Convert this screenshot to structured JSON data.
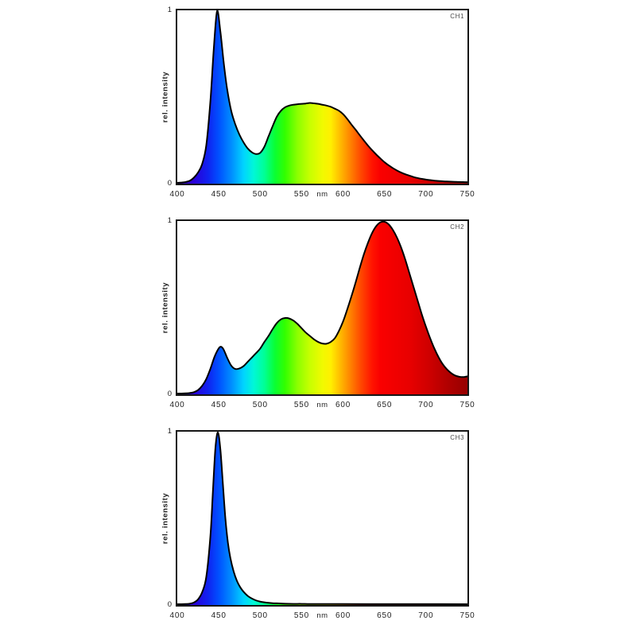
{
  "chart_data": [
    {
      "type": "area",
      "title": "CH1",
      "ylabel": "rel. intensity",
      "xlabel": "nm",
      "xlim": [
        400,
        750
      ],
      "ylim": [
        0,
        1
      ],
      "grid": false,
      "legend": "none",
      "xticks": [
        "400",
        "450",
        "500",
        "550",
        "600",
        "650",
        "700",
        "750"
      ],
      "yticks": [
        "0",
        "1"
      ],
      "x": [
        400,
        405,
        410,
        415,
        420,
        425,
        430,
        435,
        440,
        444,
        448,
        452,
        456,
        460,
        465,
        470,
        475,
        480,
        485,
        490,
        495,
        500,
        505,
        510,
        515,
        520,
        525,
        530,
        535,
        540,
        545,
        550,
        555,
        560,
        565,
        570,
        575,
        580,
        585,
        590,
        595,
        600,
        605,
        610,
        615,
        620,
        625,
        630,
        635,
        640,
        645,
        650,
        655,
        660,
        665,
        670,
        675,
        680,
        685,
        690,
        695,
        700,
        705,
        710,
        715,
        720,
        725,
        730,
        735,
        740,
        745,
        750
      ],
      "y": [
        0,
        0.002,
        0.005,
        0.012,
        0.03,
        0.06,
        0.11,
        0.22,
        0.48,
        0.78,
        1.0,
        0.88,
        0.7,
        0.55,
        0.42,
        0.34,
        0.28,
        0.235,
        0.2,
        0.178,
        0.168,
        0.175,
        0.21,
        0.27,
        0.33,
        0.385,
        0.42,
        0.44,
        0.45,
        0.455,
        0.458,
        0.46,
        0.462,
        0.465,
        0.463,
        0.46,
        0.455,
        0.45,
        0.443,
        0.432,
        0.42,
        0.4,
        0.372,
        0.34,
        0.31,
        0.278,
        0.247,
        0.217,
        0.19,
        0.165,
        0.142,
        0.12,
        0.102,
        0.086,
        0.072,
        0.06,
        0.05,
        0.042,
        0.034,
        0.028,
        0.023,
        0.019,
        0.016,
        0.013,
        0.011,
        0.009,
        0.008,
        0.007,
        0.006,
        0.005,
        0.0045,
        0.004
      ]
    },
    {
      "type": "area",
      "title": "CH2",
      "ylabel": "rel. intensity",
      "xlabel": "nm",
      "xlim": [
        400,
        750
      ],
      "ylim": [
        0,
        1
      ],
      "grid": false,
      "legend": "none",
      "xticks": [
        "400",
        "450",
        "500",
        "550",
        "600",
        "650",
        "700",
        "750"
      ],
      "yticks": [
        "0",
        "1"
      ],
      "x": [
        400,
        405,
        410,
        415,
        420,
        425,
        430,
        435,
        440,
        445,
        450,
        453,
        456,
        460,
        465,
        470,
        475,
        480,
        485,
        490,
        495,
        500,
        505,
        510,
        515,
        520,
        525,
        530,
        535,
        540,
        545,
        550,
        555,
        560,
        565,
        570,
        575,
        580,
        585,
        590,
        595,
        600,
        605,
        610,
        615,
        620,
        625,
        630,
        635,
        640,
        645,
        650,
        655,
        660,
        665,
        670,
        675,
        680,
        685,
        690,
        695,
        700,
        705,
        710,
        715,
        720,
        725,
        730,
        735,
        740,
        745,
        750
      ],
      "y": [
        0,
        0,
        0.001,
        0.003,
        0.008,
        0.02,
        0.045,
        0.085,
        0.145,
        0.215,
        0.263,
        0.272,
        0.255,
        0.21,
        0.163,
        0.143,
        0.146,
        0.16,
        0.185,
        0.21,
        0.235,
        0.262,
        0.3,
        0.335,
        0.375,
        0.41,
        0.432,
        0.44,
        0.437,
        0.425,
        0.405,
        0.38,
        0.355,
        0.335,
        0.315,
        0.3,
        0.291,
        0.29,
        0.3,
        0.322,
        0.365,
        0.42,
        0.49,
        0.565,
        0.645,
        0.73,
        0.81,
        0.878,
        0.935,
        0.975,
        0.997,
        1.0,
        0.985,
        0.953,
        0.908,
        0.85,
        0.78,
        0.7,
        0.62,
        0.54,
        0.46,
        0.388,
        0.322,
        0.263,
        0.213,
        0.172,
        0.142,
        0.12,
        0.105,
        0.098,
        0.096,
        0.1
      ]
    },
    {
      "type": "area",
      "title": "CH3",
      "ylabel": "rel. intensity",
      "xlabel": "nm",
      "xlim": [
        400,
        750
      ],
      "ylim": [
        0,
        1
      ],
      "grid": false,
      "legend": "none",
      "xticks": [
        "400",
        "450",
        "500",
        "550",
        "600",
        "650",
        "700",
        "750"
      ],
      "yticks": [
        "0",
        "1"
      ],
      "x": [
        400,
        405,
        410,
        415,
        420,
        425,
        430,
        435,
        440,
        443,
        446,
        449,
        452,
        455,
        458,
        461,
        464,
        468,
        472,
        476,
        480,
        485,
        490,
        495,
        500,
        505,
        510,
        515,
        520,
        530,
        540,
        550,
        560,
        580,
        600,
        650,
        700,
        750
      ],
      "y": [
        0,
        0,
        0.001,
        0.003,
        0.01,
        0.028,
        0.07,
        0.16,
        0.4,
        0.66,
        0.91,
        1.0,
        0.9,
        0.7,
        0.5,
        0.36,
        0.27,
        0.19,
        0.135,
        0.098,
        0.072,
        0.048,
        0.033,
        0.022,
        0.015,
        0.011,
        0.008,
        0.006,
        0.005,
        0.003,
        0.002,
        0.002,
        0.001,
        0.001,
        0.001,
        0.0005,
        0.0005,
        0
      ]
    }
  ],
  "style": {
    "background": "#ffffff",
    "curve_color": "#000000",
    "frame_color": "#161616",
    "label_color": "#222222",
    "title_color": "#4a4a4a",
    "spectrum_stops": [
      {
        "wl": 400,
        "color": "#2a0099"
      },
      {
        "wl": 420,
        "color": "#2b00d8"
      },
      {
        "wl": 437,
        "color": "#1022f0"
      },
      {
        "wl": 450,
        "color": "#0050ff"
      },
      {
        "wl": 465,
        "color": "#008cff"
      },
      {
        "wl": 480,
        "color": "#00d4ff"
      },
      {
        "wl": 492,
        "color": "#00f7d8"
      },
      {
        "wl": 505,
        "color": "#00ff96"
      },
      {
        "wl": 518,
        "color": "#0aff32"
      },
      {
        "wl": 530,
        "color": "#32ff00"
      },
      {
        "wl": 545,
        "color": "#8cff00"
      },
      {
        "wl": 560,
        "color": "#c8ff00"
      },
      {
        "wl": 575,
        "color": "#f0fa00"
      },
      {
        "wl": 585,
        "color": "#fff000"
      },
      {
        "wl": 598,
        "color": "#ffb400"
      },
      {
        "wl": 610,
        "color": "#ff7d00"
      },
      {
        "wl": 622,
        "color": "#ff4600"
      },
      {
        "wl": 635,
        "color": "#ff1400"
      },
      {
        "wl": 645,
        "color": "#fa0000"
      },
      {
        "wl": 680,
        "color": "#e80000"
      },
      {
        "wl": 705,
        "color": "#cd0000"
      },
      {
        "wl": 725,
        "color": "#b20000"
      },
      {
        "wl": 750,
        "color": "#960000"
      }
    ]
  }
}
